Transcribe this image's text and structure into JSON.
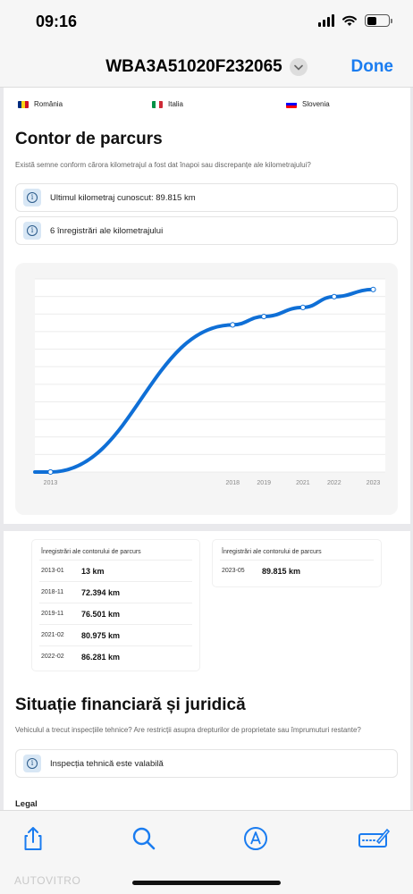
{
  "status": {
    "time": "09:16"
  },
  "nav": {
    "title": "WBA3A51020F232065",
    "done": "Done"
  },
  "countries": [
    {
      "name": "România",
      "colors": [
        "#002B7F",
        "#FCD116",
        "#CE1126"
      ],
      "orient": "vertical"
    },
    {
      "name": "Italia",
      "colors": [
        "#009246",
        "#FFFFFF",
        "#CE2B37"
      ],
      "orient": "vertical"
    },
    {
      "name": "Slovenia",
      "colors": [
        "#FFFFFF",
        "#0000FF",
        "#FF0000"
      ],
      "orient": "horizontal"
    }
  ],
  "odometer": {
    "title": "Contor de parcurs",
    "description": "Există semne conform cărora kilometrajul a fost dat înapoi sau discrepanțe ale kilometrajului?",
    "info": [
      {
        "icon": "info-icon",
        "text": "Ultimul kilometraj cunoscut: 89.815 km"
      },
      {
        "icon": "info-icon",
        "text": "6 înregistrări ale kilometrajului"
      }
    ]
  },
  "chart_data": {
    "type": "line",
    "x": [
      "2013-01",
      "2018-11",
      "2019-11",
      "2021-02",
      "2022-02",
      "2023-05"
    ],
    "values": [
      13,
      72394,
      76501,
      80975,
      86281,
      89815
    ],
    "xticks": [
      "2013",
      "2018",
      "2019",
      "2021",
      "2022",
      "2023"
    ],
    "title": "",
    "xlabel": "",
    "ylabel": "",
    "color": "#0f6fd6",
    "grid": true
  },
  "tables": [
    {
      "header": "Înregistrări ale contorului de parcurs",
      "rows": [
        {
          "date": "2013-01",
          "km": "13 km"
        },
        {
          "date": "2018-11",
          "km": "72.394 km"
        },
        {
          "date": "2019-11",
          "km": "76.501 km"
        },
        {
          "date": "2021-02",
          "km": "80.975 km"
        },
        {
          "date": "2022-02",
          "km": "86.281 km"
        }
      ]
    },
    {
      "header": "Înregistrări ale contorului de parcurs",
      "rows": [
        {
          "date": "2023-05",
          "km": "89.815 km"
        }
      ]
    }
  ],
  "financial": {
    "title": "Situație financiară și juridică",
    "description": "Vehiculul a trecut inspecțiile tehnice? Are restricții asupra drepturilor de proprietate sau împrumuturi restante?",
    "info": {
      "icon": "info-icon",
      "text": "Inspecția tehnică este valabilă"
    },
    "legal_label": "Legal"
  },
  "toolbar": {
    "items": [
      "share-icon",
      "search-icon",
      "markup-icon",
      "edit-icon"
    ],
    "accent": "#1a7cf0"
  },
  "watermark": "AUTOVITRO"
}
